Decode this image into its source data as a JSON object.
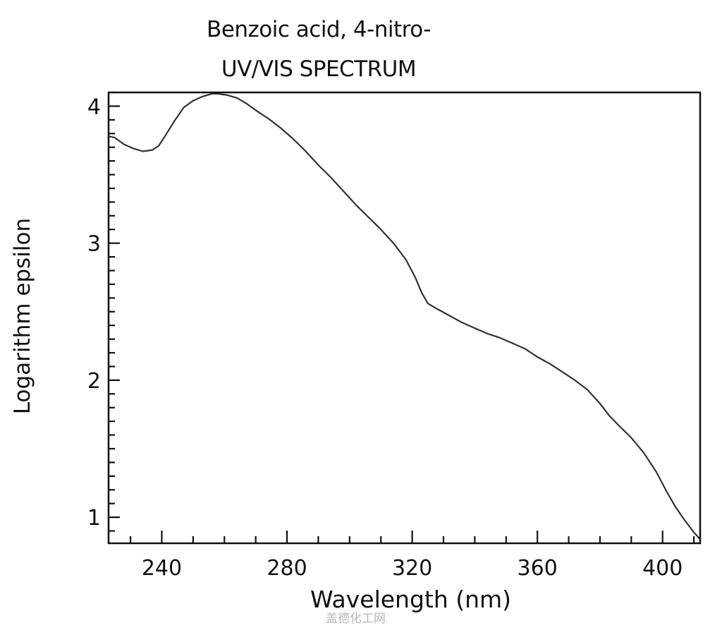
{
  "header": {
    "title_line1": "Benzoic acid, 4-nitro-",
    "title_line2": "UV/VIS SPECTRUM"
  },
  "watermark": "盖德化工网",
  "chart_data": {
    "type": "line",
    "title": "Benzoic acid, 4-nitro- UV/VIS SPECTRUM",
    "xlabel": "Wavelength (nm)",
    "ylabel": "Logarithm epsilon",
    "xlim": [
      223,
      412
    ],
    "ylim": [
      0.81,
      4.1
    ],
    "x_ticks": [
      240,
      280,
      320,
      360,
      400
    ],
    "y_ticks": [
      1,
      2,
      3,
      4
    ],
    "grid": false,
    "legend": null,
    "series": [
      {
        "name": "log epsilon",
        "color": "#333333",
        "x": [
          223,
          225,
          228,
          231,
          234,
          237,
          239,
          241,
          244,
          247,
          250,
          253,
          256,
          258,
          261,
          264,
          267,
          270,
          274,
          278,
          282,
          286,
          290,
          294,
          298,
          302,
          306,
          310,
          314,
          318,
          321,
          323,
          325,
          328,
          332,
          336,
          340,
          344,
          348,
          352,
          356,
          360,
          364,
          368,
          372,
          376,
          380,
          383,
          386,
          390,
          394,
          398,
          401,
          404,
          407,
          410,
          412
        ],
        "y": [
          3.78,
          3.77,
          3.72,
          3.69,
          3.67,
          3.68,
          3.71,
          3.78,
          3.89,
          3.99,
          4.04,
          4.07,
          4.09,
          4.09,
          4.08,
          4.06,
          4.02,
          3.97,
          3.91,
          3.84,
          3.76,
          3.67,
          3.57,
          3.48,
          3.38,
          3.28,
          3.19,
          3.1,
          3.0,
          2.88,
          2.75,
          2.64,
          2.56,
          2.52,
          2.47,
          2.42,
          2.38,
          2.34,
          2.31,
          2.27,
          2.23,
          2.17,
          2.12,
          2.06,
          2.0,
          1.93,
          1.83,
          1.74,
          1.67,
          1.58,
          1.47,
          1.33,
          1.2,
          1.08,
          0.98,
          0.89,
          0.84
        ]
      }
    ]
  }
}
